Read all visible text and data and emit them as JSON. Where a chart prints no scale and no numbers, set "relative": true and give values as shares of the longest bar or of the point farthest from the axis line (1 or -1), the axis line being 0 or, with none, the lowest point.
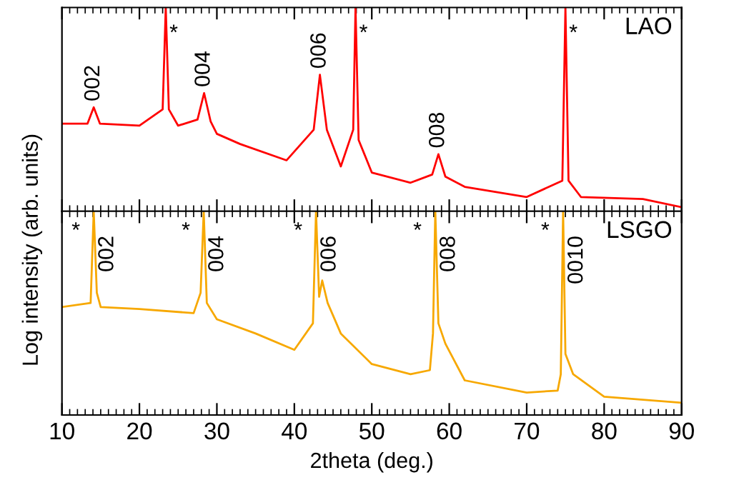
{
  "chart_data": [
    {
      "type": "line",
      "relative": true,
      "ylabel": "Log intensity (arb. units)",
      "xlim": [
        10,
        90
      ],
      "xticks": [
        10,
        20,
        30,
        40,
        50,
        60,
        70,
        80,
        90
      ],
      "tick_labels": false,
      "grid": false,
      "legend": false,
      "series": [
        {
          "name": "LAO",
          "color": "#ff0000",
          "x": [
            10,
            13.3,
            14.1,
            14.9,
            20,
            23.0,
            23.4,
            23.8,
            25,
            27.5,
            28.35,
            29.2,
            30,
            33,
            39,
            42.5,
            43.3,
            44.2,
            46,
            47.6,
            47.9,
            48.3,
            50,
            55,
            57.8,
            58.6,
            59.5,
            62,
            70,
            74.6,
            75.0,
            75.4,
            77,
            85,
            90
          ],
          "values": [
            0.43,
            0.43,
            0.51,
            0.43,
            0.42,
            0.5,
            1,
            0.5,
            0.42,
            0.45,
            0.58,
            0.44,
            0.38,
            0.33,
            0.25,
            0.4,
            0.67,
            0.4,
            0.22,
            0.4,
            1,
            0.35,
            0.19,
            0.14,
            0.18,
            0.28,
            0.17,
            0.12,
            0.07,
            0.15,
            1,
            0.15,
            0.07,
            0.06,
            0.02
          ]
        }
      ],
      "annotations": [
        {
          "text": "002",
          "x": 14.1,
          "y": 0.51
        },
        {
          "text": "*",
          "x": 23.4,
          "y": 1
        },
        {
          "text": "004",
          "x": 28.35,
          "y": 0.58
        },
        {
          "text": "006",
          "x": 43.3,
          "y": 0.67
        },
        {
          "text": "*",
          "x": 47.9,
          "y": 1
        },
        {
          "text": "008",
          "x": 58.6,
          "y": 0.28
        },
        {
          "text": "*",
          "x": 75.0,
          "y": 1
        }
      ]
    },
    {
      "type": "line",
      "relative": true,
      "xlabel": "2theta (deg.)",
      "xlim": [
        10,
        90
      ],
      "xticks": [
        10,
        20,
        30,
        40,
        50,
        60,
        70,
        80,
        90
      ],
      "tick_labels": "x",
      "grid": false,
      "legend": false,
      "series": [
        {
          "name": "LSGO",
          "color": "#f7a800",
          "x": [
            10,
            13.7,
            14.1,
            14.5,
            15,
            20,
            27,
            27.9,
            28.3,
            28.7,
            30,
            35,
            40,
            42.4,
            42.8,
            43.2,
            43.6,
            44.3,
            46,
            50,
            55,
            57.5,
            57.9,
            58.2,
            58.6,
            59.5,
            62,
            70,
            74,
            74.4,
            74.7,
            75.0,
            76,
            80,
            90
          ],
          "values": [
            0.53,
            0.55,
            1,
            0.6,
            0.53,
            0.52,
            0.5,
            0.6,
            1,
            0.55,
            0.47,
            0.4,
            0.32,
            0.45,
            1,
            0.58,
            0.66,
            0.55,
            0.4,
            0.25,
            0.2,
            0.22,
            0.4,
            1,
            0.45,
            0.35,
            0.17,
            0.11,
            0.12,
            0.2,
            1,
            0.3,
            0.2,
            0.09,
            0.06
          ]
        }
      ],
      "annotations": [
        {
          "text": "*",
          "x": 14.1,
          "y": 1
        },
        {
          "text": "002",
          "x": 14.1,
          "y": 1
        },
        {
          "text": "*",
          "x": 28.3,
          "y": 1
        },
        {
          "text": "004",
          "x": 28.3,
          "y": 1
        },
        {
          "text": "*",
          "x": 42.8,
          "y": 1
        },
        {
          "text": "006",
          "x": 42.8,
          "y": 1
        },
        {
          "text": "*",
          "x": 58.2,
          "y": 1
        },
        {
          "text": "008",
          "x": 58.2,
          "y": 1
        },
        {
          "text": "*",
          "x": 74.7,
          "y": 1
        },
        {
          "text": "0010",
          "x": 74.7,
          "y": 1
        }
      ]
    }
  ]
}
